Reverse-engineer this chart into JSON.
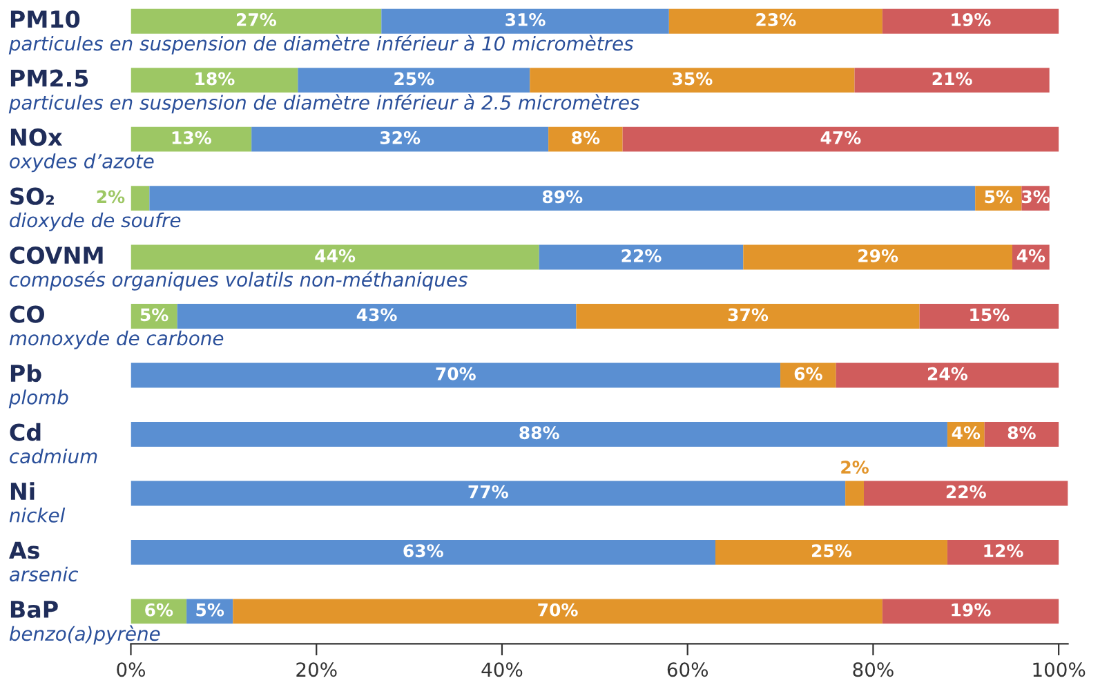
{
  "chart_data": {
    "type": "bar",
    "orientation": "horizontal",
    "stacked": true,
    "categories": [
      "PM10\nparticules en suspension de diamètre inférieur à 10 micromètres",
      "PM2.5\nparticules en suspension de diamètre inférieur à 2.5 micromètres",
      "NOx\noxydes d’azote",
      "SO₂\ndioxyde de soufre",
      "COVNM\ncomposés organiques volatils non-méthaniques",
      "CO\nmonoxyde de carbone",
      "Pb\nplomb",
      "Cd\ncadmium",
      "Ni\nnickel",
      "As\narsenic",
      "BaP\nbenzo(a)pyrène"
    ],
    "series": [
      {
        "color": "#9dc764",
        "values": [
          27,
          18,
          13,
          2,
          44,
          5,
          null,
          null,
          null,
          null,
          6
        ],
        "value_labels": [
          "27%",
          "18%",
          "13%",
          "2%",
          "44%",
          "5%",
          null,
          null,
          null,
          null,
          "6%"
        ]
      },
      {
        "color": "#5a8fd2",
        "values": [
          31,
          25,
          32,
          89,
          22,
          43,
          70,
          88,
          77,
          63,
          5
        ],
        "value_labels": [
          "31%",
          "25%",
          "32%",
          "89%",
          "22%",
          "43%",
          "70%",
          "88%",
          "77%",
          "63%",
          "5%"
        ]
      },
      {
        "color": "#e2952b",
        "values": [
          23,
          35,
          8,
          5,
          29,
          37,
          6,
          4,
          2,
          25,
          70
        ],
        "value_labels": [
          "23%",
          "35%",
          "8%",
          "5%",
          "29%",
          "37%",
          "6%",
          "4%",
          "2%",
          "25%",
          "70%"
        ]
      },
      {
        "color": "#d05c5c",
        "values": [
          19,
          21,
          47,
          3,
          4,
          15,
          24,
          8,
          22,
          12,
          19
        ],
        "value_labels": [
          "19%",
          "21%",
          "47%",
          "3%",
          "4%",
          "15%",
          "24%",
          "8%",
          "22%",
          "12%",
          "19%"
        ]
      }
    ],
    "xlim": [
      0,
      101
    ],
    "xticks": [
      {
        "value": 0,
        "label": "0%"
      },
      {
        "value": 20,
        "label": "20%"
      },
      {
        "value": 40,
        "label": "40%"
      },
      {
        "value": 60,
        "label": "60%"
      },
      {
        "value": 80,
        "label": "80%"
      },
      {
        "value": 100,
        "label": "100%"
      }
    ],
    "grid": false,
    "legend": false
  }
}
